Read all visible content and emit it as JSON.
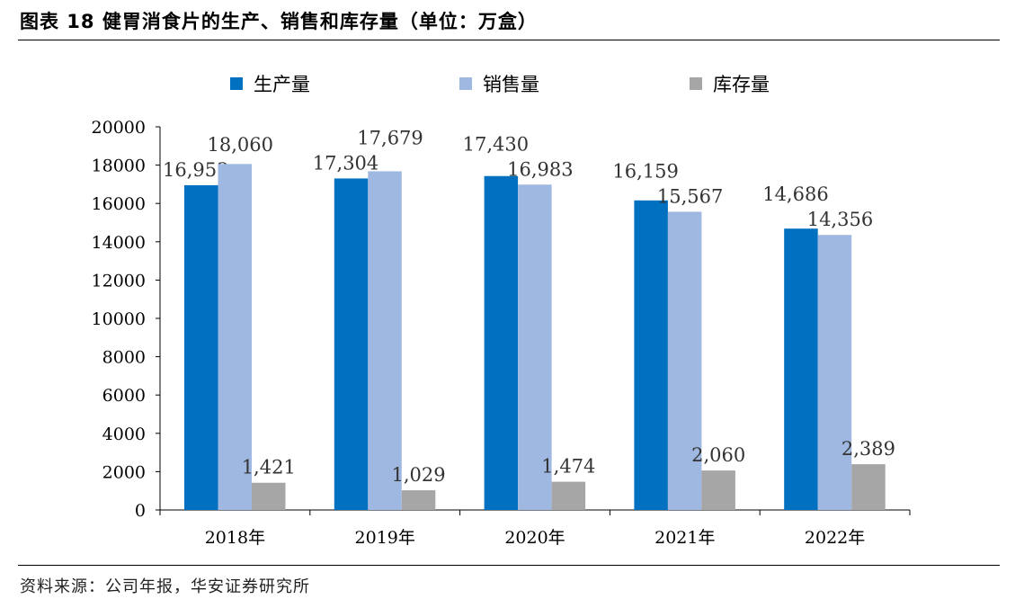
{
  "title": "图表 18 健胃消食片的生产、销售和库存量（单位：万盒）",
  "source": "资料来源：公司年报，华安证券研究所",
  "chart_data": {
    "type": "bar",
    "categories": [
      "2018年",
      "2019年",
      "2020年",
      "2021年",
      "2022年"
    ],
    "series": [
      {
        "name": "生产量",
        "color": "#0070C0",
        "values": [
          16953,
          17304,
          17430,
          16159,
          14686
        ],
        "labels": [
          "16,953",
          "17,304",
          "17,430",
          "16,159",
          "14,686"
        ]
      },
      {
        "name": "销售量",
        "color": "#9FB8E2",
        "values": [
          18060,
          17679,
          16983,
          15567,
          14356
        ],
        "labels": [
          "18,060",
          "17,679",
          "16,983",
          "15,567",
          "14,356"
        ]
      },
      {
        "name": "库存量",
        "color": "#A6A6A6",
        "values": [
          1421,
          1029,
          1474,
          2060,
          2389
        ],
        "labels": [
          "1,421",
          "1,029",
          "1,474",
          "2,060",
          "2,389"
        ]
      }
    ],
    "yticks": [
      "0",
      "2000",
      "4000",
      "6000",
      "8000",
      "10000",
      "12000",
      "14000",
      "16000",
      "18000",
      "20000"
    ],
    "ylim": [
      0,
      20000
    ],
    "grid": false,
    "legend": "top"
  }
}
